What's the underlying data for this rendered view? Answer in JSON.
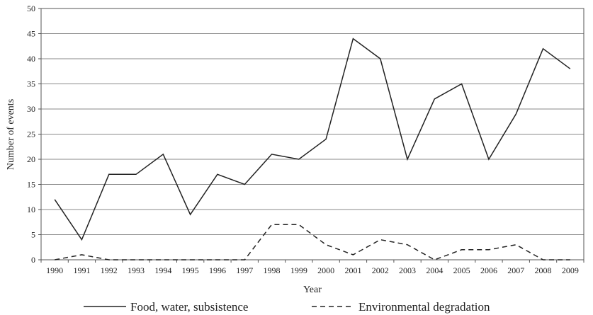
{
  "chart_data": {
    "type": "line",
    "title": "",
    "xlabel": "Year",
    "ylabel": "Number of events",
    "x": [
      "1990",
      "1991",
      "1992",
      "1993",
      "1994",
      "1995",
      "1996",
      "1997",
      "1998",
      "1999",
      "2000",
      "2001",
      "2002",
      "2003",
      "2004",
      "2005",
      "2006",
      "2007",
      "2008",
      "2009"
    ],
    "ylim": [
      0,
      50
    ],
    "yticks": [
      0,
      5,
      10,
      15,
      20,
      25,
      30,
      35,
      40,
      45,
      50
    ],
    "grid": "horizontal",
    "legend_position": "bottom",
    "series": [
      {
        "name": "Food, water, subsistence",
        "style": "solid",
        "color": "#222222",
        "values": [
          12,
          4,
          17,
          17,
          21,
          9,
          17,
          15,
          21,
          20,
          24,
          44,
          40,
          20,
          32,
          35,
          20,
          29,
          42,
          38
        ]
      },
      {
        "name": "Environmental degradation",
        "style": "dashed",
        "color": "#222222",
        "values": [
          0,
          1,
          0,
          0,
          0,
          0,
          0,
          0,
          7,
          7,
          3,
          1,
          4,
          3,
          0,
          2,
          2,
          3,
          0,
          0
        ]
      }
    ]
  }
}
